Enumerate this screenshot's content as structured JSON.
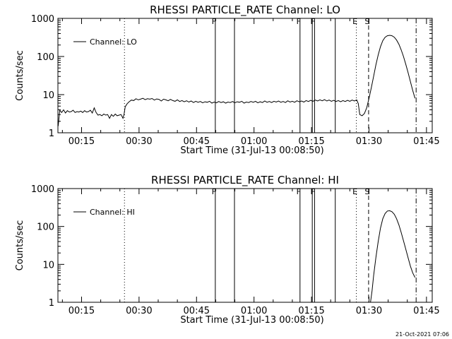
{
  "footer": {
    "timestamp": "21-Oct-2021 07:06"
  },
  "chart_data": [
    {
      "type": "line",
      "title": "RHESSI PARTICLE_RATE Channel: LO",
      "xlabel": "Start Time (31-Jul-13 00:08:50)",
      "ylabel": "Counts/sec",
      "y_scale": "log",
      "ylim": [
        1,
        1000
      ],
      "xlim_minutes": [
        8.83,
        106.5
      ],
      "x_ticks": [
        {
          "minute": 15,
          "label": "00:15"
        },
        {
          "minute": 30,
          "label": "00:30"
        },
        {
          "minute": 45,
          "label": "00:45"
        },
        {
          "minute": 60,
          "label": "01:00"
        },
        {
          "minute": 75,
          "label": "01:15"
        },
        {
          "minute": 90,
          "label": "01:30"
        },
        {
          "minute": 105,
          "label": "01:45"
        }
      ],
      "y_ticks": [
        {
          "value": 1,
          "label": "1"
        },
        {
          "value": 10,
          "label": "10"
        },
        {
          "value": 100,
          "label": "100"
        },
        {
          "value": 1000,
          "label": "1000"
        }
      ],
      "legend": {
        "placement": "top-left",
        "label": "Channel: LO"
      },
      "series": [
        {
          "name": "Channel: LO",
          "points": [
            [
              8.9,
              1.5
            ],
            [
              9.3,
              3.9
            ],
            [
              9.8,
              3.4
            ],
            [
              10.3,
              4.0
            ],
            [
              10.8,
              3.3
            ],
            [
              11.3,
              3.8
            ],
            [
              11.8,
              3.5
            ],
            [
              12.3,
              3.6
            ],
            [
              12.8,
              3.9
            ],
            [
              13.3,
              3.4
            ],
            [
              13.8,
              3.6
            ],
            [
              14.3,
              3.5
            ],
            [
              14.8,
              3.7
            ],
            [
              15.3,
              3.4
            ],
            [
              15.8,
              3.8
            ],
            [
              16.3,
              3.5
            ],
            [
              16.8,
              3.6
            ],
            [
              17.3,
              3.9
            ],
            [
              17.8,
              3.3
            ],
            [
              18.3,
              4.5
            ],
            [
              18.8,
              3.4
            ],
            [
              19.3,
              2.9
            ],
            [
              19.8,
              3.0
            ],
            [
              20.3,
              2.8
            ],
            [
              20.8,
              3.1
            ],
            [
              21.3,
              2.9
            ],
            [
              21.8,
              3.0
            ],
            [
              22.3,
              2.4
            ],
            [
              22.8,
              3.0
            ],
            [
              23.3,
              2.7
            ],
            [
              23.8,
              3.1
            ],
            [
              24.3,
              2.8
            ],
            [
              24.8,
              2.9
            ],
            [
              25.3,
              3.0
            ],
            [
              25.8,
              2.4
            ],
            [
              26.1,
              3.1
            ],
            [
              26.4,
              4.8
            ],
            [
              26.9,
              5.8
            ],
            [
              27.4,
              6.5
            ],
            [
              28.0,
              7.2
            ],
            [
              28.6,
              7.0
            ],
            [
              29.2,
              7.8
            ],
            [
              29.8,
              7.3
            ],
            [
              30.4,
              7.6
            ],
            [
              31.0,
              8.0
            ],
            [
              31.6,
              7.4
            ],
            [
              32.2,
              7.8
            ],
            [
              32.8,
              7.6
            ],
            [
              33.4,
              7.9
            ],
            [
              34.0,
              7.2
            ],
            [
              34.6,
              7.7
            ],
            [
              35.2,
              7.5
            ],
            [
              35.8,
              6.8
            ],
            [
              36.4,
              7.6
            ],
            [
              37.0,
              7.3
            ],
            [
              37.6,
              6.9
            ],
            [
              38.2,
              7.5
            ],
            [
              38.8,
              7.0
            ],
            [
              39.4,
              6.7
            ],
            [
              40.0,
              7.3
            ],
            [
              40.6,
              6.6
            ],
            [
              41.2,
              7.0
            ],
            [
              41.8,
              6.5
            ],
            [
              42.4,
              6.9
            ],
            [
              43.0,
              6.4
            ],
            [
              43.6,
              6.8
            ],
            [
              44.2,
              6.2
            ],
            [
              44.8,
              6.7
            ],
            [
              45.4,
              6.3
            ],
            [
              46.0,
              6.6
            ],
            [
              46.6,
              6.1
            ],
            [
              47.2,
              6.5
            ],
            [
              47.8,
              6.3
            ],
            [
              48.4,
              6.7
            ],
            [
              49.0,
              6.0
            ],
            [
              49.6,
              6.4
            ],
            [
              50.2,
              6.1
            ],
            [
              50.8,
              6.6
            ],
            [
              51.4,
              6.2
            ],
            [
              52.0,
              6.5
            ],
            [
              52.6,
              6.0
            ],
            [
              53.2,
              6.4
            ],
            [
              53.8,
              6.2
            ],
            [
              54.4,
              6.6
            ],
            [
              55.0,
              6.1
            ],
            [
              55.6,
              6.5
            ],
            [
              56.2,
              6.3
            ],
            [
              56.8,
              6.7
            ],
            [
              57.4,
              6.0
            ],
            [
              58.0,
              6.4
            ],
            [
              58.6,
              6.2
            ],
            [
              59.2,
              6.6
            ],
            [
              59.8,
              6.3
            ],
            [
              60.4,
              6.7
            ],
            [
              61.0,
              6.1
            ],
            [
              61.6,
              6.5
            ],
            [
              62.2,
              6.2
            ],
            [
              62.8,
              6.8
            ],
            [
              63.4,
              6.3
            ],
            [
              64.0,
              6.6
            ],
            [
              64.6,
              6.2
            ],
            [
              65.2,
              6.7
            ],
            [
              65.8,
              6.4
            ],
            [
              66.4,
              6.8
            ],
            [
              67.0,
              6.3
            ],
            [
              67.6,
              6.6
            ],
            [
              68.2,
              6.2
            ],
            [
              68.8,
              6.9
            ],
            [
              69.4,
              6.4
            ],
            [
              70.0,
              6.7
            ],
            [
              70.6,
              6.3
            ],
            [
              71.2,
              6.9
            ],
            [
              71.8,
              6.5
            ],
            [
              72.4,
              6.8
            ],
            [
              73.0,
              6.4
            ],
            [
              73.6,
              7.0
            ],
            [
              74.2,
              6.6
            ],
            [
              74.8,
              7.1
            ],
            [
              75.4,
              6.7
            ],
            [
              76.0,
              7.2
            ],
            [
              76.6,
              6.8
            ],
            [
              77.2,
              7.3
            ],
            [
              77.8,
              6.9
            ],
            [
              78.4,
              7.4
            ],
            [
              79.0,
              6.8
            ],
            [
              79.6,
              7.2
            ],
            [
              80.2,
              6.7
            ],
            [
              80.8,
              7.1
            ],
            [
              81.4,
              6.6
            ],
            [
              82.0,
              7.0
            ],
            [
              82.6,
              6.5
            ],
            [
              83.2,
              7.0
            ],
            [
              83.8,
              6.6
            ],
            [
              84.4,
              7.1
            ],
            [
              85.0,
              6.7
            ],
            [
              85.6,
              7.2
            ],
            [
              86.2,
              6.8
            ],
            [
              86.8,
              7.3
            ],
            [
              87.2,
              5.8
            ],
            [
              87.6,
              3.0
            ],
            [
              88.2,
              2.8
            ],
            [
              88.8,
              3.2
            ],
            [
              89.4,
              4.5
            ],
            [
              90.0,
              8.0
            ],
            [
              90.6,
              15
            ],
            [
              91.2,
              30
            ],
            [
              91.8,
              60
            ],
            [
              92.4,
              110
            ],
            [
              93.0,
              180
            ],
            [
              93.6,
              260
            ],
            [
              94.2,
              320
            ],
            [
              94.8,
              350
            ],
            [
              95.4,
              360
            ],
            [
              96.0,
              350
            ],
            [
              96.6,
              320
            ],
            [
              97.2,
              270
            ],
            [
              97.8,
              210
            ],
            [
              98.4,
              150
            ],
            [
              99.0,
              100
            ],
            [
              99.6,
              62
            ],
            [
              100.2,
              38
            ],
            [
              100.8,
              22
            ],
            [
              101.4,
              13
            ],
            [
              102.0,
              8.0
            ]
          ]
        }
      ],
      "vertical_markers": [
        {
          "minute": 26.2,
          "style": "dotted",
          "label": ""
        },
        {
          "minute": 49.9,
          "style": "solid",
          "label": "F"
        },
        {
          "minute": 54.9,
          "style": "solid",
          "label": ""
        },
        {
          "minute": 72.0,
          "style": "solid",
          "label": "F"
        },
        {
          "minute": 75.2,
          "style": "solid",
          "label": ""
        },
        {
          "minute": 75.8,
          "style": "solid",
          "label": "F"
        },
        {
          "minute": 81.2,
          "style": "solid",
          "label": ""
        },
        {
          "minute": 86.7,
          "style": "dotted",
          "label": "E"
        },
        {
          "minute": 89.9,
          "style": "dashed",
          "label": "S"
        },
        {
          "minute": 102.3,
          "style": "dashdot",
          "label": ""
        }
      ]
    },
    {
      "type": "line",
      "title": "RHESSI PARTICLE_RATE Channel: HI",
      "xlabel": "Start Time (31-Jul-13 00:08:50)",
      "ylabel": "Counts/sec",
      "y_scale": "log",
      "ylim": [
        1,
        1000
      ],
      "xlim_minutes": [
        8.83,
        106.5
      ],
      "x_ticks": [
        {
          "minute": 15,
          "label": "00:15"
        },
        {
          "minute": 30,
          "label": "00:30"
        },
        {
          "minute": 45,
          "label": "00:45"
        },
        {
          "minute": 60,
          "label": "01:00"
        },
        {
          "minute": 75,
          "label": "01:15"
        },
        {
          "minute": 90,
          "label": "01:30"
        },
        {
          "minute": 105,
          "label": "01:45"
        }
      ],
      "y_ticks": [
        {
          "value": 1,
          "label": "1"
        },
        {
          "value": 10,
          "label": "10"
        },
        {
          "value": 100,
          "label": "100"
        },
        {
          "value": 1000,
          "label": "1000"
        }
      ],
      "legend": {
        "placement": "top-left",
        "label": "Channel: HI"
      },
      "series": [
        {
          "name": "Channel: HI",
          "points": [
            [
              90.4,
              1.0
            ],
            [
              90.8,
              2.0
            ],
            [
              91.2,
              5
            ],
            [
              91.8,
              15
            ],
            [
              92.4,
              40
            ],
            [
              93.0,
              90
            ],
            [
              93.6,
              160
            ],
            [
              94.2,
              220
            ],
            [
              94.8,
              255
            ],
            [
              95.4,
              260
            ],
            [
              96.0,
              245
            ],
            [
              96.6,
              210
            ],
            [
              97.2,
              160
            ],
            [
              97.8,
              110
            ],
            [
              98.4,
              70
            ],
            [
              99.0,
              42
            ],
            [
              99.6,
              25
            ],
            [
              100.2,
              15
            ],
            [
              100.8,
              9
            ],
            [
              101.4,
              6
            ],
            [
              102.0,
              4.5
            ]
          ]
        }
      ],
      "vertical_markers": [
        {
          "minute": 26.2,
          "style": "dotted",
          "label": ""
        },
        {
          "minute": 49.9,
          "style": "solid",
          "label": "F"
        },
        {
          "minute": 54.9,
          "style": "solid",
          "label": ""
        },
        {
          "minute": 72.0,
          "style": "solid",
          "label": "F"
        },
        {
          "minute": 75.2,
          "style": "solid",
          "label": ""
        },
        {
          "minute": 75.8,
          "style": "solid",
          "label": "F"
        },
        {
          "minute": 81.2,
          "style": "solid",
          "label": ""
        },
        {
          "minute": 86.7,
          "style": "dotted",
          "label": "E"
        },
        {
          "minute": 89.9,
          "style": "dashed",
          "label": "S"
        },
        {
          "minute": 102.3,
          "style": "dashdot",
          "label": ""
        }
      ]
    }
  ]
}
